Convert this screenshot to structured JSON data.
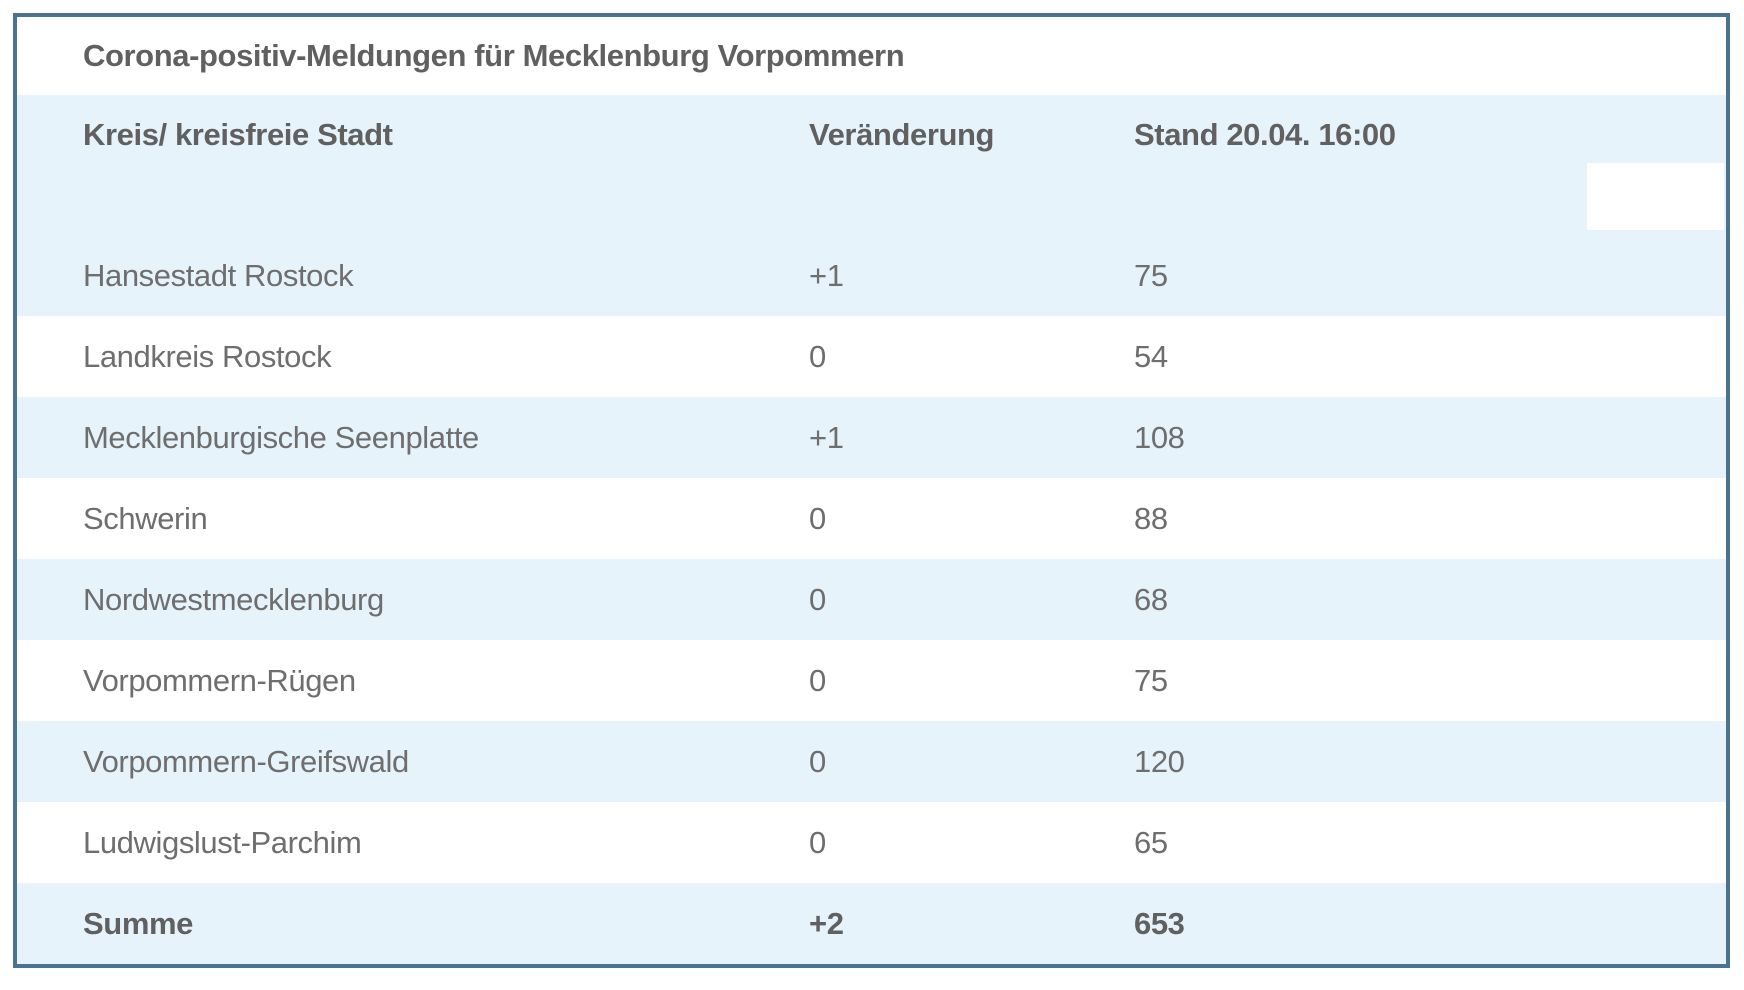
{
  "table": {
    "title": "Corona-positiv-Meldungen für Mecklenburg Vorpommern",
    "columns": [
      {
        "key": "kreis",
        "label": "Kreis/ kreisfreie Stadt"
      },
      {
        "key": "veraenderung",
        "label": "Veränderung"
      },
      {
        "key": "stand",
        "label": "Stand 20.04. 16:00"
      }
    ],
    "rows": [
      {
        "kreis": "Hansestadt Rostock",
        "veraenderung": "+1",
        "stand": "75",
        "bold": false
      },
      {
        "kreis": "Landkreis Rostock",
        "veraenderung": "0",
        "stand": "54",
        "bold": false
      },
      {
        "kreis": "Mecklenburgische Seenplatte",
        "veraenderung": "+1",
        "stand": "108",
        "bold": false
      },
      {
        "kreis": "Schwerin",
        "veraenderung": "0",
        "stand": "88",
        "bold": false
      },
      {
        "kreis": "Nordwestmecklenburg",
        "veraenderung": "0",
        "stand": "68",
        "bold": false
      },
      {
        "kreis": "Vorpommern-Rügen",
        "veraenderung": "0",
        "stand": "75",
        "bold": false
      },
      {
        "kreis": "Vorpommern-Greifswald",
        "veraenderung": "0",
        "stand": "120",
        "bold": false
      },
      {
        "kreis": "Ludwigslust-Parchim",
        "veraenderung": "0",
        "stand": "65",
        "bold": false
      },
      {
        "kreis": "Summe",
        "veraenderung": "+2",
        "stand": "653",
        "bold": true
      }
    ],
    "colors": {
      "border": "#4a7390",
      "stripe": "#e7f3fb",
      "row_text": "#6e6e6e",
      "heading_text": "#606060"
    }
  },
  "chart_data": {
    "type": "table",
    "title": "Corona-positiv-Meldungen für Mecklenburg Vorpommern",
    "columns": [
      "Kreis/ kreisfreie Stadt",
      "Veränderung",
      "Stand 20.04. 16:00"
    ],
    "categories": [
      "Hansestadt Rostock",
      "Landkreis Rostock",
      "Mecklenburgische Seenplatte",
      "Schwerin",
      "Nordwestmecklenburg",
      "Vorpommern-Rügen",
      "Vorpommern-Greifswald",
      "Ludwigslust-Parchim",
      "Summe"
    ],
    "series": [
      {
        "name": "Veränderung",
        "values": [
          "+1",
          "0",
          "+1",
          "0",
          "0",
          "0",
          "0",
          "0",
          "+2"
        ]
      },
      {
        "name": "Stand 20.04. 16:00",
        "values": [
          75,
          54,
          108,
          88,
          68,
          75,
          120,
          65,
          653
        ]
      }
    ],
    "layout_hints": {
      "striped_rows": true,
      "summary_row_bold": true,
      "border_color": "#4a7390",
      "stripe_color": "#e7f3fb"
    }
  }
}
